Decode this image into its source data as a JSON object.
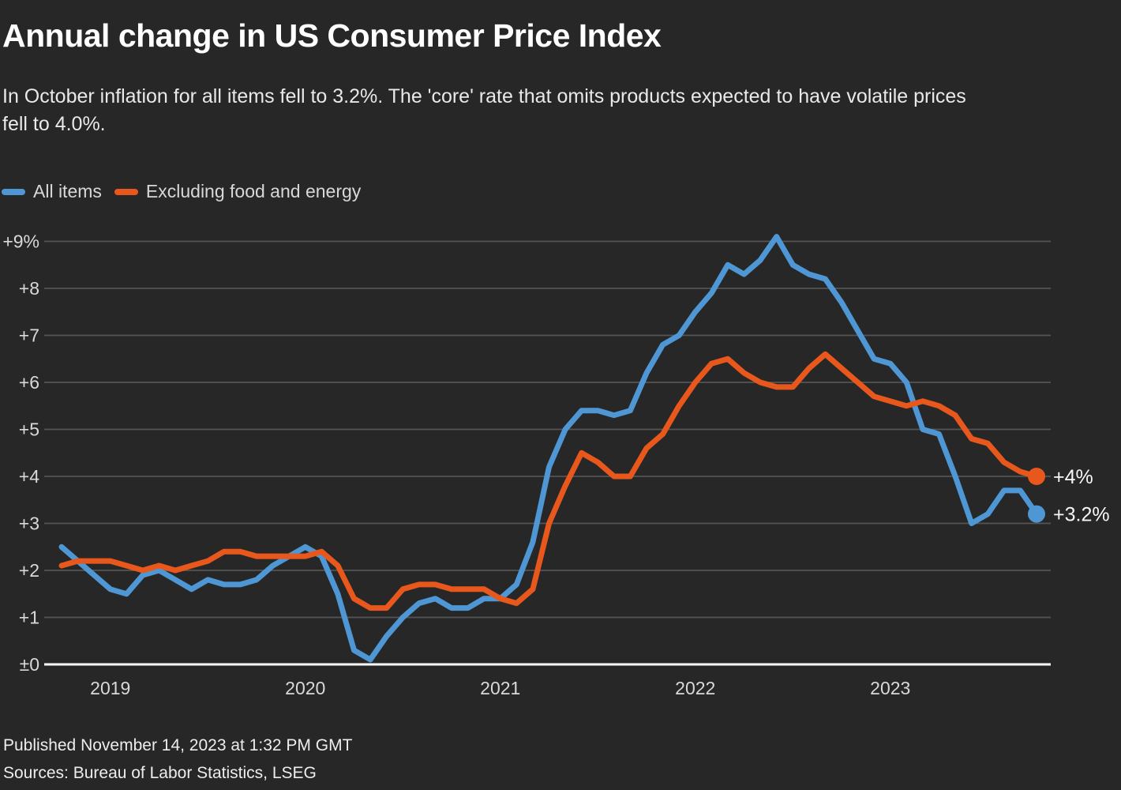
{
  "header": {
    "title": "Annual change in US Consumer Price Index",
    "subtitle_lines": [
      "In October inflation for all items fell to 3.2%. The 'core' rate that omits products expected to have volatile prices",
      "fell to 4.0%."
    ]
  },
  "legend": [
    {
      "label": "All items",
      "color": "#4F97D4"
    },
    {
      "label": "Excluding food and energy",
      "color": "#E8581C"
    }
  ],
  "chart_data": {
    "type": "line",
    "frequency": "monthly",
    "x": [
      "2018-10",
      "2018-11",
      "2018-12",
      "2019-01",
      "2019-02",
      "2019-03",
      "2019-04",
      "2019-05",
      "2019-06",
      "2019-07",
      "2019-08",
      "2019-09",
      "2019-10",
      "2019-11",
      "2019-12",
      "2020-01",
      "2020-02",
      "2020-03",
      "2020-04",
      "2020-05",
      "2020-06",
      "2020-07",
      "2020-08",
      "2020-09",
      "2020-10",
      "2020-11",
      "2020-12",
      "2021-01",
      "2021-02",
      "2021-03",
      "2021-04",
      "2021-05",
      "2021-06",
      "2021-07",
      "2021-08",
      "2021-09",
      "2021-10",
      "2021-11",
      "2021-12",
      "2022-01",
      "2022-02",
      "2022-03",
      "2022-04",
      "2022-05",
      "2022-06",
      "2022-07",
      "2022-08",
      "2022-09",
      "2022-10",
      "2022-11",
      "2022-12",
      "2023-01",
      "2023-02",
      "2023-03",
      "2023-04",
      "2023-05",
      "2023-06",
      "2023-07",
      "2023-08",
      "2023-09",
      "2023-10"
    ],
    "series": [
      {
        "name": "All items",
        "color": "#4F97D4",
        "end_label": "+3.2%",
        "values": [
          2.5,
          2.2,
          1.9,
          1.6,
          1.5,
          1.9,
          2.0,
          1.8,
          1.6,
          1.8,
          1.7,
          1.7,
          1.8,
          2.1,
          2.3,
          2.5,
          2.3,
          1.5,
          0.3,
          0.1,
          0.6,
          1.0,
          1.3,
          1.4,
          1.2,
          1.2,
          1.4,
          1.4,
          1.7,
          2.6,
          4.2,
          5.0,
          5.4,
          5.4,
          5.3,
          5.4,
          6.2,
          6.8,
          7.0,
          7.5,
          7.9,
          8.5,
          8.3,
          8.6,
          9.1,
          8.5,
          8.3,
          8.2,
          7.7,
          7.1,
          6.5,
          6.4,
          6.0,
          5.0,
          4.9,
          4.0,
          3.0,
          3.2,
          3.7,
          3.7,
          3.2
        ]
      },
      {
        "name": "Excluding food and energy",
        "color": "#E8581C",
        "end_label": "+4%",
        "values": [
          2.1,
          2.2,
          2.2,
          2.2,
          2.1,
          2.0,
          2.1,
          2.0,
          2.1,
          2.2,
          2.4,
          2.4,
          2.3,
          2.3,
          2.3,
          2.3,
          2.4,
          2.1,
          1.4,
          1.2,
          1.2,
          1.6,
          1.7,
          1.7,
          1.6,
          1.6,
          1.6,
          1.4,
          1.3,
          1.6,
          3.0,
          3.8,
          4.5,
          4.3,
          4.0,
          4.0,
          4.6,
          4.9,
          5.5,
          6.0,
          6.4,
          6.5,
          6.2,
          6.0,
          5.9,
          5.9,
          6.3,
          6.6,
          6.3,
          6.0,
          5.7,
          5.6,
          5.5,
          5.6,
          5.5,
          5.3,
          4.8,
          4.7,
          4.3,
          4.1,
          4.0
        ]
      }
    ],
    "y_ticks": [
      {
        "value": 9,
        "label": "+9%"
      },
      {
        "value": 8,
        "label": "+8"
      },
      {
        "value": 7,
        "label": "+7"
      },
      {
        "value": 6,
        "label": "+6"
      },
      {
        "value": 5,
        "label": "+5"
      },
      {
        "value": 4,
        "label": "+4"
      },
      {
        "value": 3,
        "label": "+3"
      },
      {
        "value": 2,
        "label": "+2"
      },
      {
        "value": 1,
        "label": "+1"
      },
      {
        "value": 0,
        "label": "±0"
      }
    ],
    "x_ticks": [
      {
        "label": "2019",
        "month_index": 3
      },
      {
        "label": "2020",
        "month_index": 15
      },
      {
        "label": "2021",
        "month_index": 27
      },
      {
        "label": "2022",
        "month_index": 39
      },
      {
        "label": "2023",
        "month_index": 51
      }
    ],
    "ylim": [
      0,
      9.5
    ],
    "grid": true,
    "legend_position": "top-left"
  },
  "colors": {
    "background": "#272727",
    "grid": "#555555",
    "baseline": "#FFFFFF",
    "tick_label": "#D9D9D9",
    "end_label": "#F7F7F7"
  },
  "footer": {
    "published": "Published November 14, 2023 at 1:32 PM GMT",
    "sources": "Sources: Bureau of Labor Statistics, LSEG"
  }
}
